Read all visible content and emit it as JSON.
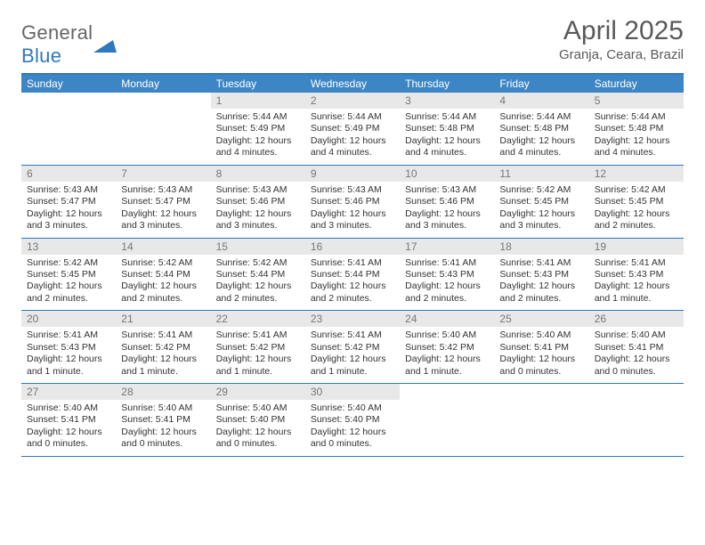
{
  "logo": {
    "part1": "General",
    "part2": "Blue"
  },
  "header": {
    "title": "April 2025",
    "location": "Granja, Ceara, Brazil"
  },
  "colors": {
    "accent": "#2f78bd",
    "header_bg": "#3d86c6",
    "daynum_bg": "#e8e8e8",
    "text_muted": "#777777"
  },
  "days": [
    "Sunday",
    "Monday",
    "Tuesday",
    "Wednesday",
    "Thursday",
    "Friday",
    "Saturday"
  ],
  "weeks": [
    [
      null,
      null,
      {
        "n": "1",
        "sr": "5:44 AM",
        "ss": "5:49 PM",
        "dl": "12 hours and 4 minutes."
      },
      {
        "n": "2",
        "sr": "5:44 AM",
        "ss": "5:49 PM",
        "dl": "12 hours and 4 minutes."
      },
      {
        "n": "3",
        "sr": "5:44 AM",
        "ss": "5:48 PM",
        "dl": "12 hours and 4 minutes."
      },
      {
        "n": "4",
        "sr": "5:44 AM",
        "ss": "5:48 PM",
        "dl": "12 hours and 4 minutes."
      },
      {
        "n": "5",
        "sr": "5:44 AM",
        "ss": "5:48 PM",
        "dl": "12 hours and 4 minutes."
      }
    ],
    [
      {
        "n": "6",
        "sr": "5:43 AM",
        "ss": "5:47 PM",
        "dl": "12 hours and 3 minutes."
      },
      {
        "n": "7",
        "sr": "5:43 AM",
        "ss": "5:47 PM",
        "dl": "12 hours and 3 minutes."
      },
      {
        "n": "8",
        "sr": "5:43 AM",
        "ss": "5:46 PM",
        "dl": "12 hours and 3 minutes."
      },
      {
        "n": "9",
        "sr": "5:43 AM",
        "ss": "5:46 PM",
        "dl": "12 hours and 3 minutes."
      },
      {
        "n": "10",
        "sr": "5:43 AM",
        "ss": "5:46 PM",
        "dl": "12 hours and 3 minutes."
      },
      {
        "n": "11",
        "sr": "5:42 AM",
        "ss": "5:45 PM",
        "dl": "12 hours and 3 minutes."
      },
      {
        "n": "12",
        "sr": "5:42 AM",
        "ss": "5:45 PM",
        "dl": "12 hours and 2 minutes."
      }
    ],
    [
      {
        "n": "13",
        "sr": "5:42 AM",
        "ss": "5:45 PM",
        "dl": "12 hours and 2 minutes."
      },
      {
        "n": "14",
        "sr": "5:42 AM",
        "ss": "5:44 PM",
        "dl": "12 hours and 2 minutes."
      },
      {
        "n": "15",
        "sr": "5:42 AM",
        "ss": "5:44 PM",
        "dl": "12 hours and 2 minutes."
      },
      {
        "n": "16",
        "sr": "5:41 AM",
        "ss": "5:44 PM",
        "dl": "12 hours and 2 minutes."
      },
      {
        "n": "17",
        "sr": "5:41 AM",
        "ss": "5:43 PM",
        "dl": "12 hours and 2 minutes."
      },
      {
        "n": "18",
        "sr": "5:41 AM",
        "ss": "5:43 PM",
        "dl": "12 hours and 2 minutes."
      },
      {
        "n": "19",
        "sr": "5:41 AM",
        "ss": "5:43 PM",
        "dl": "12 hours and 1 minute."
      }
    ],
    [
      {
        "n": "20",
        "sr": "5:41 AM",
        "ss": "5:43 PM",
        "dl": "12 hours and 1 minute."
      },
      {
        "n": "21",
        "sr": "5:41 AM",
        "ss": "5:42 PM",
        "dl": "12 hours and 1 minute."
      },
      {
        "n": "22",
        "sr": "5:41 AM",
        "ss": "5:42 PM",
        "dl": "12 hours and 1 minute."
      },
      {
        "n": "23",
        "sr": "5:41 AM",
        "ss": "5:42 PM",
        "dl": "12 hours and 1 minute."
      },
      {
        "n": "24",
        "sr": "5:40 AM",
        "ss": "5:42 PM",
        "dl": "12 hours and 1 minute."
      },
      {
        "n": "25",
        "sr": "5:40 AM",
        "ss": "5:41 PM",
        "dl": "12 hours and 0 minutes."
      },
      {
        "n": "26",
        "sr": "5:40 AM",
        "ss": "5:41 PM",
        "dl": "12 hours and 0 minutes."
      }
    ],
    [
      {
        "n": "27",
        "sr": "5:40 AM",
        "ss": "5:41 PM",
        "dl": "12 hours and 0 minutes."
      },
      {
        "n": "28",
        "sr": "5:40 AM",
        "ss": "5:41 PM",
        "dl": "12 hours and 0 minutes."
      },
      {
        "n": "29",
        "sr": "5:40 AM",
        "ss": "5:40 PM",
        "dl": "12 hours and 0 minutes."
      },
      {
        "n": "30",
        "sr": "5:40 AM",
        "ss": "5:40 PM",
        "dl": "12 hours and 0 minutes."
      },
      null,
      null,
      null
    ]
  ],
  "labels": {
    "sunrise": "Sunrise:",
    "sunset": "Sunset:",
    "daylight": "Daylight:"
  }
}
